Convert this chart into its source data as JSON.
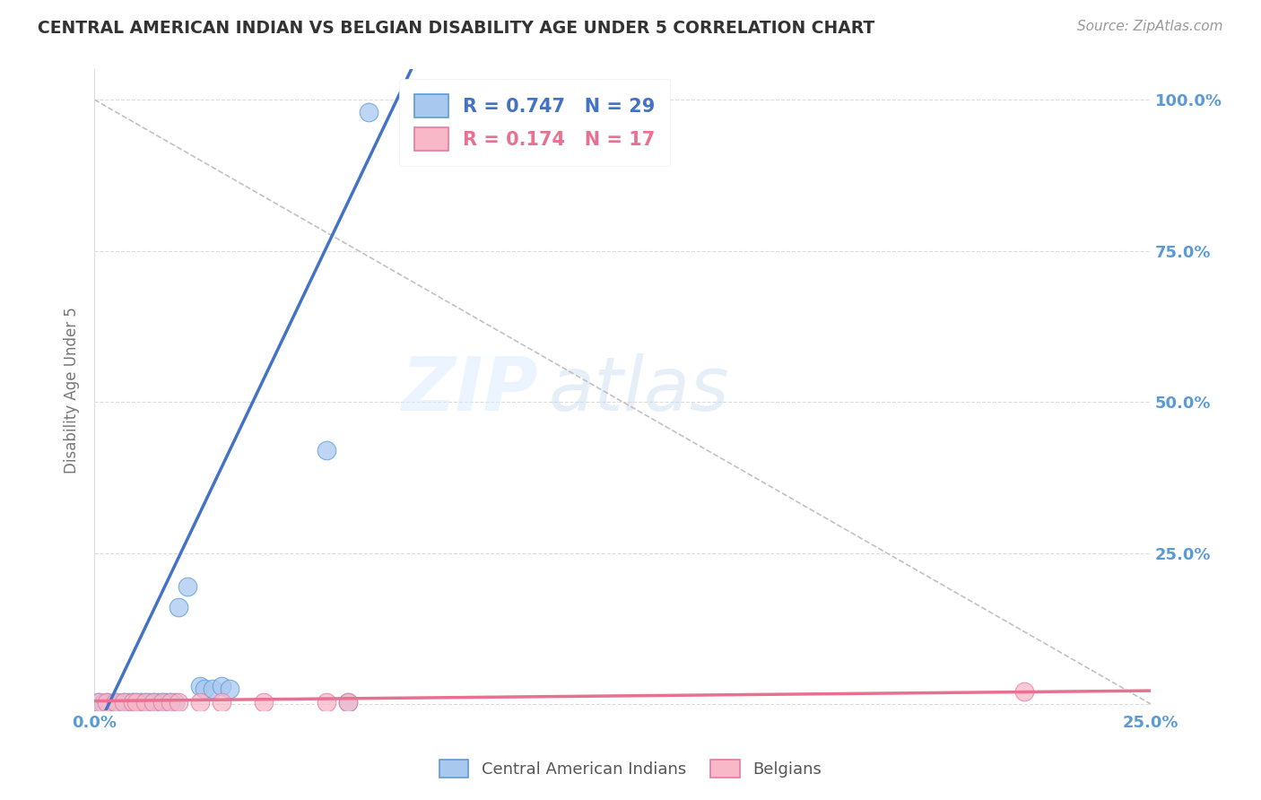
{
  "title": "CENTRAL AMERICAN INDIAN VS BELGIAN DISABILITY AGE UNDER 5 CORRELATION CHART",
  "source": "Source: ZipAtlas.com",
  "ylabel": "Disability Age Under 5",
  "xlim": [
    0.0,
    0.25
  ],
  "ylim": [
    -0.01,
    1.05
  ],
  "xticks": [
    0.0,
    0.05,
    0.1,
    0.15,
    0.2,
    0.25
  ],
  "xticklabels": [
    "0.0%",
    "",
    "",
    "",
    "",
    "25.0%"
  ],
  "yticks": [
    0.0,
    0.25,
    0.5,
    0.75,
    1.0
  ],
  "ytick_labels_right": [
    "",
    "25.0%",
    "50.0%",
    "75.0%",
    "100.0%"
  ],
  "blue_r": 0.747,
  "blue_n": 29,
  "pink_r": 0.174,
  "pink_n": 17,
  "blue_fill_color": "#A8C8F0",
  "pink_fill_color": "#F8B8C8",
  "blue_edge_color": "#5B9BD5",
  "pink_edge_color": "#E879A0",
  "blue_line_color": "#4472C4",
  "pink_line_color": "#E87090",
  "ref_line_color": "#BBBBBB",
  "background_color": "#FFFFFF",
  "watermark_zip": "ZIP",
  "watermark_atlas": "atlas",
  "grid_color": "#CCCCCC",
  "tick_label_color": "#5B9BD5",
  "blue_scatter_x": [
    0.001,
    0.002,
    0.003,
    0.004,
    0.005,
    0.006,
    0.007,
    0.008,
    0.009,
    0.01,
    0.011,
    0.012,
    0.013,
    0.014,
    0.015,
    0.016,
    0.017,
    0.018,
    0.019,
    0.02,
    0.022,
    0.025,
    0.026,
    0.028,
    0.03,
    0.032,
    0.055,
    0.06,
    0.065
  ],
  "blue_scatter_y": [
    0.003,
    0.002,
    0.003,
    0.002,
    0.003,
    0.002,
    0.003,
    0.003,
    0.003,
    0.003,
    0.003,
    0.003,
    0.003,
    0.003,
    0.003,
    0.003,
    0.003,
    0.003,
    0.003,
    0.16,
    0.195,
    0.03,
    0.025,
    0.025,
    0.03,
    0.025,
    0.42,
    0.003,
    0.98
  ],
  "pink_scatter_x": [
    0.001,
    0.003,
    0.005,
    0.007,
    0.009,
    0.01,
    0.012,
    0.014,
    0.016,
    0.018,
    0.02,
    0.025,
    0.03,
    0.04,
    0.055,
    0.06,
    0.22
  ],
  "pink_scatter_y": [
    0.003,
    0.003,
    0.003,
    0.003,
    0.003,
    0.003,
    0.003,
    0.003,
    0.003,
    0.003,
    0.003,
    0.003,
    0.003,
    0.003,
    0.003,
    0.003,
    0.02
  ]
}
